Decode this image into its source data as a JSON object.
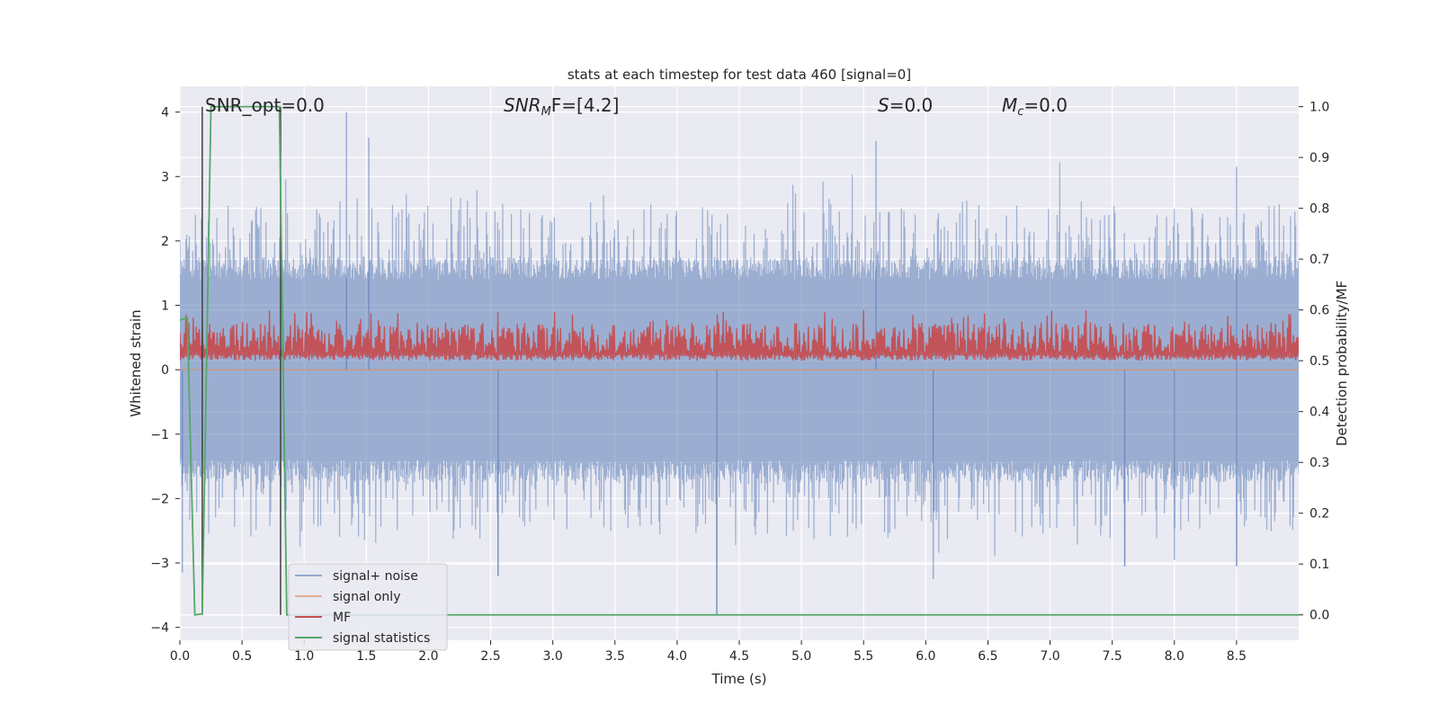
{
  "chart_data": {
    "type": "line",
    "title": "stats at each timestep for test data 460 [signal=0]",
    "xlabel": "Time (s)",
    "ylabel": "Whitened strain",
    "ylabel_right": "Detection probability/MF",
    "xlim": [
      0.0,
      9.0
    ],
    "ylim": [
      -4.2,
      4.4
    ],
    "ylim_right": [
      -0.05,
      1.04
    ],
    "xticks": [
      "0.0",
      "0.5",
      "1.0",
      "1.5",
      "2.0",
      "2.5",
      "3.0",
      "3.5",
      "4.0",
      "4.5",
      "5.0",
      "5.5",
      "6.0",
      "6.5",
      "7.0",
      "7.5",
      "8.0",
      "8.5"
    ],
    "yticks": [
      "−4",
      "−3",
      "−2",
      "−1",
      "0",
      "1",
      "2",
      "3",
      "4"
    ],
    "yticks_right": [
      "0.0",
      "0.1",
      "0.2",
      "0.3",
      "0.4",
      "0.5",
      "0.6",
      "0.7",
      "0.8",
      "0.9",
      "1.0"
    ],
    "grid": true,
    "legend_position": "lower-left",
    "annotations": {
      "snr_opt": "SNR_opt=0.0",
      "snr_mf_symbol": "SNR",
      "snr_mf_sub": "M",
      "snr_mf_rest": "F=[4.2]",
      "s_symbol": "S",
      "s_rest": "=0.0",
      "mc_symbol": "M",
      "mc_sub": "c",
      "mc_rest": "=0.0"
    },
    "colors": {
      "background": "#eaeaf2",
      "grid": "#ffffff",
      "noise": "#4c72b0",
      "signal": "#dd8452",
      "mf": "#c44e52",
      "stats": "#55a868",
      "marker_line": "#404040"
    },
    "series": [
      {
        "name": "signal+ noise",
        "axis": "left",
        "style": "noise",
        "time_range": [
          0.0,
          9.0
        ],
        "envelope": [
          -1.5,
          1.5
        ],
        "notable_peaks": [
          [
            1.34,
            4.0
          ],
          [
            1.52,
            3.6
          ],
          [
            5.6,
            3.55
          ],
          [
            8.5,
            3.15
          ]
        ],
        "notable_troughs": [
          [
            0.02,
            -3.15
          ],
          [
            2.56,
            -3.2
          ],
          [
            4.32,
            -3.8
          ],
          [
            6.06,
            -3.25
          ],
          [
            7.6,
            -3.05
          ],
          [
            8.0,
            -2.95
          ],
          [
            8.5,
            -3.05
          ]
        ]
      },
      {
        "name": "signal only",
        "axis": "left",
        "style": "flat",
        "x": [
          0.0,
          9.0
        ],
        "y": [
          0.0,
          0.0
        ]
      },
      {
        "name": "MF",
        "axis": "right",
        "style": "mf",
        "time_range": [
          0.0,
          9.0
        ],
        "baseline": 0.5,
        "upper_envelope": 0.56,
        "max_peak": 0.6
      },
      {
        "name": "signal statistics",
        "axis": "right",
        "style": "steps",
        "x": [
          0.0,
          0.06,
          0.12,
          0.18,
          0.25,
          0.8,
          0.86,
          9.0
        ],
        "y": [
          0.58,
          0.585,
          0.0,
          0.002,
          1.0,
          1.0,
          0.0,
          0.0
        ]
      }
    ],
    "marker_lines": [
      {
        "x": 0.18,
        "y_right": [
          0.0,
          1.0
        ]
      },
      {
        "x": 0.81,
        "y_right": [
          0.0,
          1.0
        ]
      }
    ]
  }
}
